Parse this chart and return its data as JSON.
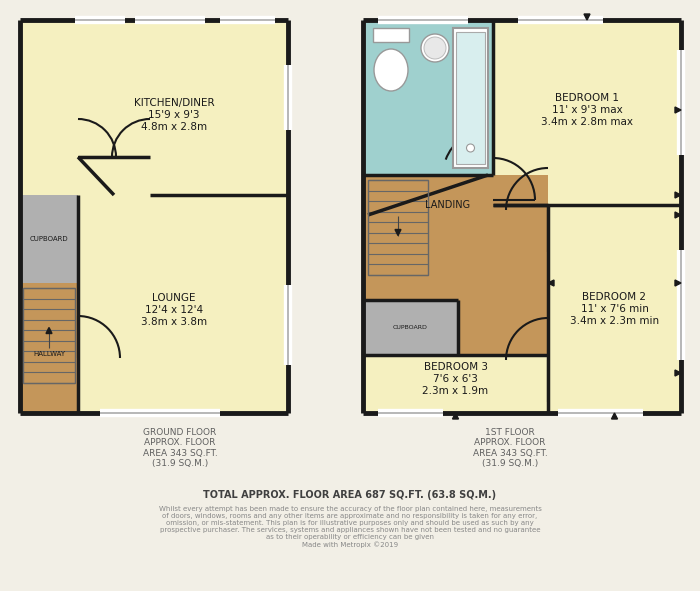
{
  "bg_color": "#f2efe6",
  "wall_color": "#1a1a1a",
  "room_fill": "#f5f0c0",
  "landing_fill": "#c4965a",
  "bathroom_fill": "#9fd0ce",
  "hallway_fill": "#c4965a",
  "cupboard_fill": "#b0b0b0",
  "window_color": "#ffffff",
  "window_line": "#aaaaaa",
  "ground_floor_label": "GROUND FLOOR\nAPPROX. FLOOR\nAREA 343 SQ.FT.\n(31.9 SQ.M.)",
  "first_floor_label": "1ST FLOOR\nAPPROX. FLOOR\nAREA 343 SQ.FT.\n(31.9 SQ.M.)",
  "total_label": "TOTAL APPROX. FLOOR AREA 687 SQ.FT. (63.8 SQ.M.)",
  "disclaimer": "Whilst every attempt has been made to ensure the accuracy of the floor plan contained here, measurements\nof doors, windows, rooms and any other items are approximate and no responsibility is taken for any error,\nomission, or mis-statement. This plan is for illustrative purposes only and should be used as such by any\nprospective purchaser. The services, systems and appliances shown have not been tested and no guarantee\nas to their operability or efficiency can be given\nMade with Metropix ©2019",
  "kitchen_label": "KITCHEN/DINER\n15'9 x 9'3\n4.8m x 2.8m",
  "lounge_label": "LOUNGE\n12'4 x 12'4\n3.8m x 3.8m",
  "hallway_label": "HALLWAY",
  "cupboard_label": "CUPBOARD",
  "bedroom1_label": "BEDROOM 1\n11' x 9'3 max\n3.4m x 2.8m max",
  "bedroom2_label": "BEDROOM 2\n11' x 7'6 min\n3.4m x 2.3m min",
  "bedroom3_label": "BEDROOM 3\n7'6 x 6'3\n2.3m x 1.9m",
  "landing_label": "LANDING",
  "cupboard2_label": "CUPBOARD"
}
